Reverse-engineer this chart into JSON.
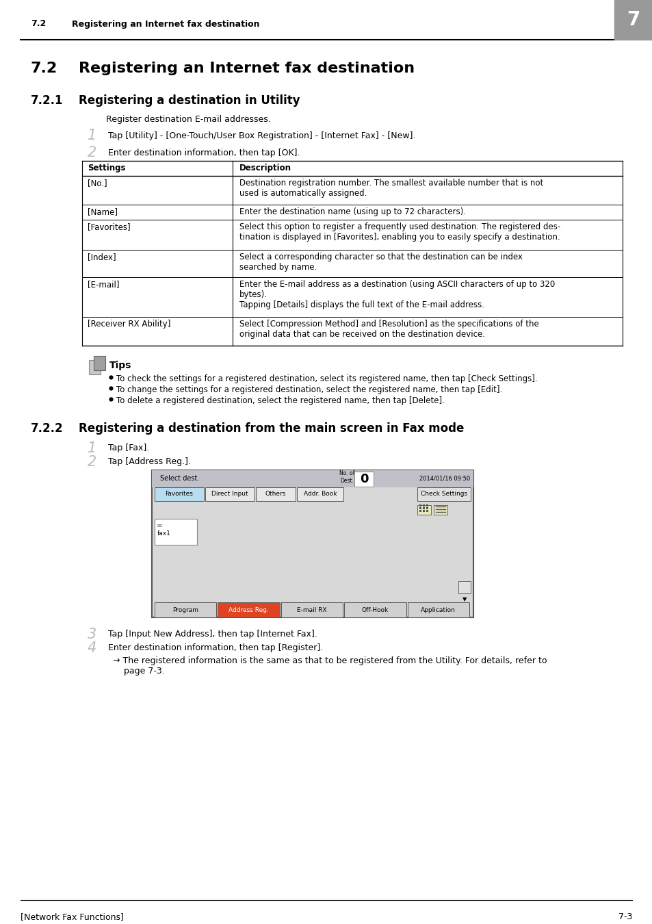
{
  "page_bg": "#ffffff",
  "header_num_text": "7.2",
  "header_title_short": "Registering an Internet fax destination",
  "header_number": "7",
  "section_num": "7.2",
  "section_title": "Registering an Internet fax destination",
  "sub721_num": "7.2.1",
  "sub721_title": "Registering a destination in Utility",
  "intro_text": "Register destination E-mail addresses.",
  "step1_text": "Tap [Utility] - [One-Touch/User Box Registration] - [Internet Fax] - [New].",
  "step2_text": "Enter destination information, then tap [OK].",
  "table_col1_header": "Settings",
  "table_col2_header": "Description",
  "table_rows": [
    [
      "[No.]",
      "Destination registration number. The smallest available number that is not\nused is automatically assigned."
    ],
    [
      "[Name]",
      "Enter the destination name (using up to 72 characters)."
    ],
    [
      "[Favorites]",
      "Select this option to register a frequently used destination. The registered des-\ntination is displayed in [Favorites], enabling you to easily specify a destination."
    ],
    [
      "[Index]",
      "Select a corresponding character so that the destination can be index\nsearched by name."
    ],
    [
      "[E-mail]",
      "Enter the E-mail address as a destination (using ASCII characters of up to 320\nbytes).\nTapping [Details] displays the full text of the E-mail address."
    ],
    [
      "[Receiver RX Ability]",
      "Select [Compression Method] and [Resolution] as the specifications of the\noriginal data that can be received on the destination device."
    ]
  ],
  "tips_title": "Tips",
  "tips_bullets": [
    "To check the settings for a registered destination, select its registered name, then tap [Check Settings].",
    "To change the settings for a registered destination, select the registered name, then tap [Edit].",
    "To delete a registered destination, select the registered name, then tap [Delete]."
  ],
  "sub722_num": "7.2.2",
  "sub722_title": "Registering a destination from the main screen in Fax mode",
  "s722_step1": "Tap [Fax].",
  "s722_step2": "Tap [Address Reg.].",
  "s722_step3": "Tap [Input New Address], then tap [Internet Fax].",
  "s722_step4": "Enter destination information, then tap [Register].",
  "s722_arrow": "→ The registered information is the same as that to be registered from the Utility. For details, refer to\n    page 7-3.",
  "footer_left": "[Network Fax Functions]",
  "footer_right": "7-3",
  "screen_tabs": [
    "Favorites",
    "Direct Input",
    "Others",
    "Addr. Book"
  ],
  "screen_bottom_tabs": [
    "Program",
    "Address Reg.",
    "E-mail RX",
    "Off-Hook",
    "Application"
  ],
  "screen_date": "2014/01/16 09:50",
  "screen_title": "Select dest.",
  "screen_no_dest": "No. of\nDest.",
  "screen_zero": "0",
  "screen_fax": "fax1"
}
